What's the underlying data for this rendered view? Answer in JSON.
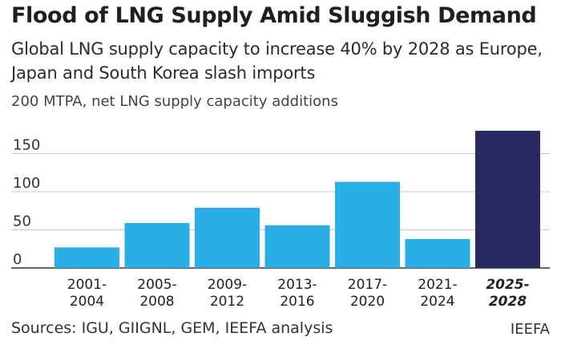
{
  "header": {
    "title": "Flood of LNG Supply Amid Sluggish Demand",
    "subtitle": "Global LNG supply capacity to increase 40% by 2028 as Europe, Japan and South Korea slash imports",
    "unit_label": "200 MTPA, net LNG supply capacity additions"
  },
  "footer": {
    "sources": "Sources: IGU, GIIGNL, GEM, IEEFA analysis",
    "brand": "IEEFA"
  },
  "colors": {
    "bar": "#29aee6",
    "highlight_bar": "#2a2a62",
    "grid": "#c8c8c8",
    "axis": "#333333"
  },
  "chart_data": {
    "type": "bar",
    "categories": [
      "2001-2004",
      "2005-2008",
      "2009-2012",
      "2013-2016",
      "2017-2020",
      "2021-2024",
      "2025-2028"
    ],
    "category_lines": [
      [
        "2001-",
        "2004"
      ],
      [
        "2005-",
        "2008"
      ],
      [
        "2009-",
        "2012"
      ],
      [
        "2013-",
        "2016"
      ],
      [
        "2017-",
        "2020"
      ],
      [
        "2021-",
        "2024"
      ],
      [
        "2025-",
        "2028"
      ]
    ],
    "values": [
      27,
      59,
      79,
      56,
      113,
      38,
      180
    ],
    "highlight_index": 6,
    "yticks": [
      0,
      50,
      100,
      150
    ],
    "ylim": [
      0,
      185
    ],
    "grid": true,
    "xlabel": "",
    "ylabel": ""
  }
}
